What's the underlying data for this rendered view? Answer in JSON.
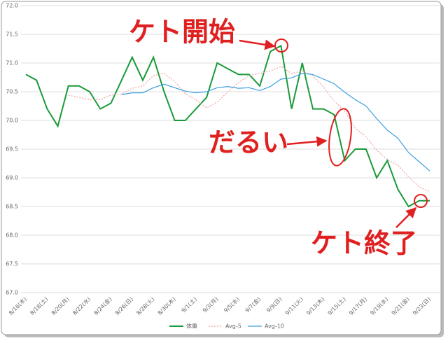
{
  "chart_data": {
    "type": "line",
    "categories": [
      "8/16(木)",
      null,
      "8/18(土)",
      null,
      "8/20(月)",
      null,
      "8/22(水)",
      null,
      "8/24(金)",
      null,
      "8/26(日)",
      null,
      "8/28(火)",
      null,
      "8/30(木)",
      null,
      "9/1(土)",
      null,
      "9/3(月)",
      null,
      "9/5(水)",
      null,
      "9/7(金)",
      null,
      "9/9(日)",
      null,
      "9/11(火)",
      null,
      "9/13(木)",
      null,
      "9/15(土)",
      null,
      "9/17(月)",
      null,
      "9/19(水)",
      null,
      "9/21(金)",
      null,
      "9/23(日)"
    ],
    "series": [
      {
        "name": "体重",
        "color": "#1a9a3a",
        "dashed": false,
        "values": [
          70.8,
          70.7,
          70.2,
          69.9,
          70.6,
          70.6,
          70.5,
          70.2,
          70.3,
          70.7,
          71.1,
          70.7,
          71.1,
          70.5,
          70.0,
          70.0,
          70.2,
          70.4,
          71.0,
          70.9,
          70.8,
          70.8,
          70.6,
          71.2,
          71.3,
          70.2,
          71.0,
          70.2,
          70.2,
          70.1,
          69.3,
          69.5,
          69.5,
          69.0,
          69.3,
          68.8,
          68.5,
          68.6,
          68.6
        ]
      },
      {
        "name": "Avg-5",
        "color": "#f2a0a0",
        "dashed": true,
        "values": [
          null,
          null,
          null,
          null,
          70.44,
          70.4,
          70.36,
          70.36,
          70.44,
          70.46,
          70.56,
          70.6,
          70.78,
          70.82,
          70.68,
          70.46,
          70.36,
          70.22,
          70.32,
          70.5,
          70.66,
          70.78,
          70.82,
          70.86,
          70.94,
          70.82,
          70.86,
          70.78,
          70.58,
          70.34,
          70.16,
          69.86,
          69.72,
          69.48,
          69.32,
          69.22,
          69.02,
          68.84,
          68.76
        ]
      },
      {
        "name": "Avg-10",
        "color": "#3a9fe0",
        "dashed": false,
        "values": [
          null,
          null,
          null,
          null,
          null,
          null,
          null,
          null,
          null,
          70.45,
          70.48,
          70.48,
          70.57,
          70.63,
          70.57,
          70.51,
          70.48,
          70.5,
          70.57,
          70.59,
          70.56,
          70.57,
          70.52,
          70.59,
          70.72,
          70.74,
          70.82,
          70.8,
          70.72,
          70.64,
          70.49,
          70.36,
          70.25,
          70.03,
          69.83,
          69.69,
          69.44,
          69.28,
          69.12
        ]
      }
    ],
    "ylim": [
      67,
      72
    ],
    "yticks": [
      {
        "value": 67,
        "label": "67.0"
      },
      {
        "value": 67.5,
        "label": "67.5"
      },
      {
        "value": 68,
        "label": "68.0"
      },
      {
        "value": 68.5,
        "label": "68.5"
      },
      {
        "value": 69,
        "label": "69.0"
      },
      {
        "value": 69.5,
        "label": "69.5"
      },
      {
        "value": 70,
        "label": "70.0"
      },
      {
        "value": 70.5,
        "label": "70.5"
      },
      {
        "value": 71,
        "label": "71.0"
      },
      {
        "value": 71.5,
        "label": "71.5"
      },
      {
        "value": 72,
        "label": "72.0"
      }
    ],
    "grid": true,
    "legend": "bottom",
    "annotations": [
      {
        "text": "ケト開始"
      },
      {
        "text": "だるい"
      },
      {
        "text": "ケト終了"
      }
    ]
  }
}
